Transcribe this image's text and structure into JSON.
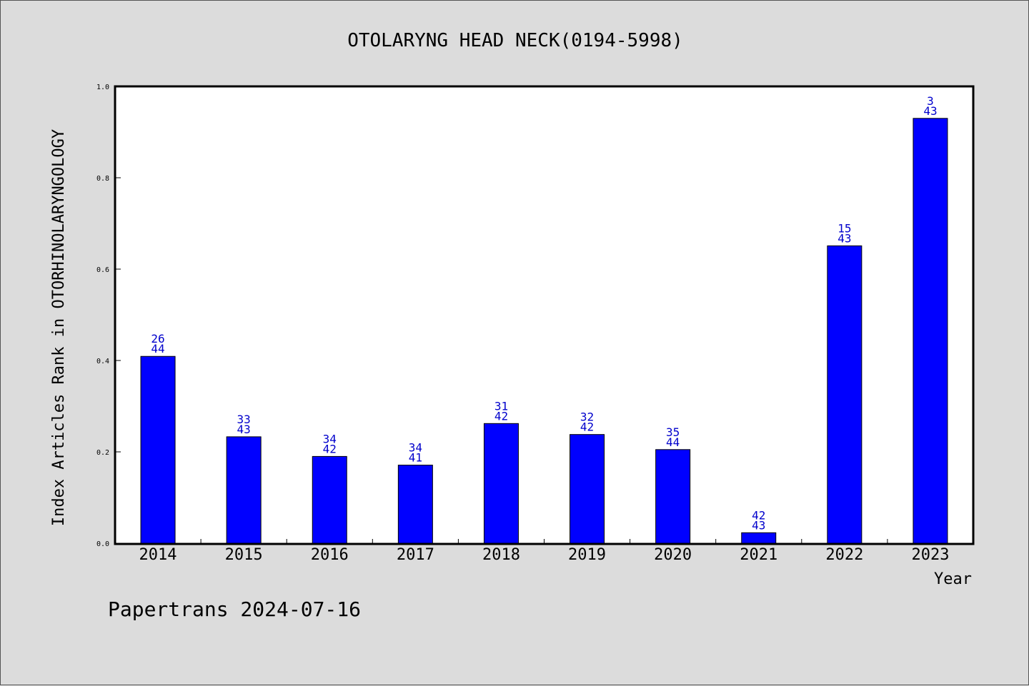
{
  "chart_data": {
    "type": "bar",
    "title": "OTOLARYNG HEAD NECK(0194-5998)",
    "xlabel": "Year",
    "ylabel": "Index Articles Rank in OTORHINOLARYNGOLOGY",
    "ylim": [
      0,
      1.0
    ],
    "yticks": [
      "0.0",
      "0.2",
      "0.4",
      "0.6",
      "0.8",
      "1.0"
    ],
    "categories": [
      "2014",
      "2015",
      "2016",
      "2017",
      "2018",
      "2019",
      "2020",
      "2021",
      "2022",
      "2023"
    ],
    "values": [
      0.409,
      0.233,
      0.19,
      0.171,
      0.262,
      0.238,
      0.205,
      0.023,
      0.651,
      0.93
    ],
    "rank_labels": [
      "26",
      "33",
      "34",
      "34",
      "31",
      "32",
      "35",
      "42",
      "15",
      "3"
    ],
    "total_labels": [
      "44",
      "43",
      "42",
      "41",
      "42",
      "42",
      "44",
      "43",
      "43",
      "43"
    ],
    "bar_color": "#0000ff",
    "label_color": "#0000cc",
    "grid": false
  },
  "footer": {
    "text": "Papertrans 2024-07-16"
  }
}
